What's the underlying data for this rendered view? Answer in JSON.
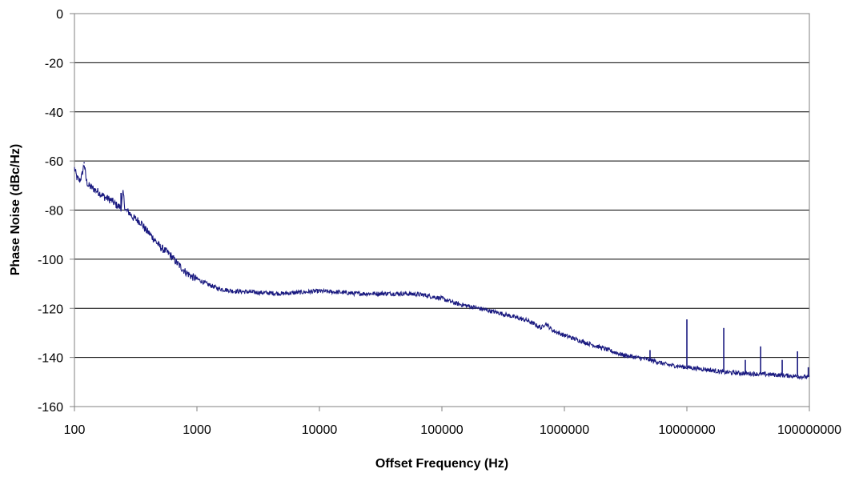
{
  "chart_data": {
    "type": "line",
    "title": "",
    "xlabel": "Offset Frequency (Hz)",
    "ylabel": "Phase Noise (dBc/Hz)",
    "x_scale": "log",
    "xlim": [
      100,
      100000000
    ],
    "ylim": [
      -160,
      0
    ],
    "x_ticks": [
      "100",
      "1000",
      "10000",
      "100000",
      "1000000",
      "10000000",
      "100000000"
    ],
    "y_ticks": [
      "0",
      "-20",
      "-40",
      "-60",
      "-80",
      "-100",
      "-120",
      "-140",
      "-160"
    ],
    "grid": "horizontal",
    "legend": "none",
    "line_color": "#1a1a80",
    "series": [
      {
        "x": [
          100,
          105,
          110,
          115,
          120,
          125,
          130,
          140,
          150,
          160,
          180,
          200,
          220,
          240,
          250,
          260,
          280,
          300,
          350,
          380,
          400,
          450,
          500,
          600,
          700,
          800,
          900,
          1000,
          1200,
          1500,
          2000,
          3000,
          5000,
          7000,
          10000,
          15000,
          20000,
          30000,
          50000,
          70000,
          100000,
          130000,
          200000,
          300000,
          500000,
          650000,
          700000,
          800000,
          1000000,
          1500000,
          2000000,
          3000000,
          5000000,
          7000000,
          10000000,
          15000000,
          20000000,
          30000000,
          50000000,
          70000000,
          100000000
        ],
        "y": [
          -63,
          -67,
          -68,
          -66,
          -61,
          -68,
          -70,
          -71,
          -72,
          -73,
          -75,
          -76,
          -78,
          -79,
          -73,
          -80,
          -81,
          -83,
          -85,
          -88,
          -89,
          -92,
          -95,
          -98,
          -102,
          -105,
          -107,
          -108,
          -110,
          -112,
          -113,
          -113.5,
          -114,
          -113.5,
          -113,
          -113.5,
          -114,
          -114,
          -114,
          -114.5,
          -116,
          -118,
          -120,
          -122,
          -125,
          -128,
          -126,
          -129,
          -131,
          -134,
          -136,
          -139,
          -141,
          -143,
          -144,
          -145,
          -146,
          -146.5,
          -147,
          -147.5,
          -148
        ]
      }
    ],
    "spurs": [
      {
        "x": 120,
        "y": -60.5
      },
      {
        "x": 240,
        "y": -73
      },
      {
        "x": 5000000,
        "y": -137
      },
      {
        "x": 10000000,
        "y": -124.5
      },
      {
        "x": 20000000,
        "y": -128
      },
      {
        "x": 30000000,
        "y": -141
      },
      {
        "x": 40000000,
        "y": -135.5
      },
      {
        "x": 60000000,
        "y": -141
      },
      {
        "x": 80000000,
        "y": -137.5
      },
      {
        "x": 98000000,
        "y": -144
      }
    ]
  }
}
